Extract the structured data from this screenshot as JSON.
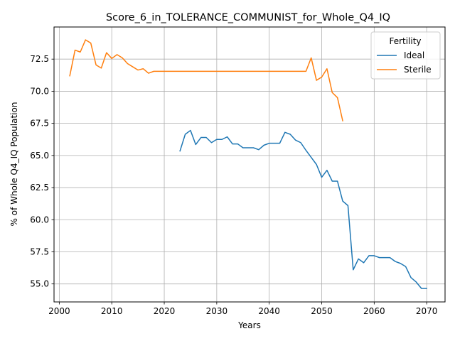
{
  "chart_data": {
    "type": "line",
    "title": "Score_6_in_TOLERANCE_COMMUNIST_for_Whole_Q4_IQ",
    "xlabel": "Years",
    "ylabel": "% of Whole Q4_IQ Population",
    "xlim": [
      1999,
      2073.5
    ],
    "ylim": [
      53.6,
      75.0
    ],
    "xticks": [
      2000,
      2010,
      2020,
      2030,
      2040,
      2050,
      2060,
      2070
    ],
    "yticks": [
      55.0,
      57.5,
      60.0,
      62.5,
      65.0,
      67.5,
      70.0,
      72.5
    ],
    "xtick_labels": [
      "2000",
      "2010",
      "2020",
      "2030",
      "2040",
      "2050",
      "2060",
      "2070"
    ],
    "ytick_labels": [
      "55.0",
      "57.5",
      "60.0",
      "62.5",
      "65.0",
      "67.5",
      "70.0",
      "72.5"
    ],
    "grid": true,
    "legend": {
      "title": "Fertility",
      "placement": "top-right"
    },
    "series": [
      {
        "name": "Ideal",
        "color": "#1f77b4",
        "x": [
          2023,
          2024,
          2025,
          2026,
          2027,
          2028,
          2029,
          2030,
          2031,
          2032,
          2033,
          2034,
          2035,
          2036,
          2037,
          2038,
          2039,
          2040,
          2041,
          2042,
          2043,
          2044,
          2045,
          2046,
          2047,
          2048,
          2049,
          2050,
          2051,
          2052,
          2053,
          2054,
          2055,
          2056,
          2057,
          2058,
          2059,
          2060,
          2061,
          2062,
          2063,
          2064,
          2065,
          2066,
          2067,
          2068,
          2069,
          2070
        ],
        "y": [
          65.35,
          66.65,
          66.95,
          65.85,
          66.4,
          66.4,
          66.0,
          66.25,
          66.25,
          66.45,
          65.9,
          65.9,
          65.6,
          65.6,
          65.6,
          65.45,
          65.8,
          65.95,
          65.95,
          65.95,
          66.8,
          66.65,
          66.2,
          66.0,
          65.4,
          64.85,
          64.3,
          63.3,
          63.85,
          63.0,
          63.0,
          61.45,
          61.1,
          56.1,
          56.95,
          56.65,
          57.2,
          57.2,
          57.05,
          57.05,
          57.05,
          56.75,
          56.6,
          56.35,
          55.5,
          55.15,
          54.65,
          54.65
        ]
      },
      {
        "name": "Sterile",
        "color": "#ff7f0e",
        "x": [
          2002,
          2003,
          2004,
          2005,
          2006,
          2007,
          2008,
          2009,
          2010,
          2011,
          2012,
          2013,
          2014,
          2015,
          2016,
          2017,
          2018,
          2019,
          2020,
          2021,
          2022,
          2023,
          2024,
          2025,
          2026,
          2027,
          2028,
          2029,
          2030,
          2031,
          2032,
          2033,
          2034,
          2035,
          2036,
          2037,
          2038,
          2039,
          2040,
          2041,
          2042,
          2043,
          2044,
          2045,
          2046,
          2047,
          2048,
          2049,
          2050,
          2051,
          2052,
          2053,
          2054
        ],
        "y": [
          71.2,
          73.2,
          73.05,
          74.0,
          73.75,
          72.05,
          71.8,
          73.0,
          72.55,
          72.85,
          72.6,
          72.15,
          71.9,
          71.65,
          71.75,
          71.4,
          71.55,
          71.55,
          71.55,
          71.55,
          71.55,
          71.55,
          71.55,
          71.55,
          71.55,
          71.55,
          71.55,
          71.55,
          71.55,
          71.55,
          71.55,
          71.55,
          71.55,
          71.55,
          71.55,
          71.55,
          71.55,
          71.55,
          71.55,
          71.55,
          71.55,
          71.55,
          71.55,
          71.55,
          71.55,
          71.55,
          72.6,
          70.85,
          71.1,
          71.75,
          69.9,
          69.5,
          67.7
        ]
      }
    ]
  }
}
